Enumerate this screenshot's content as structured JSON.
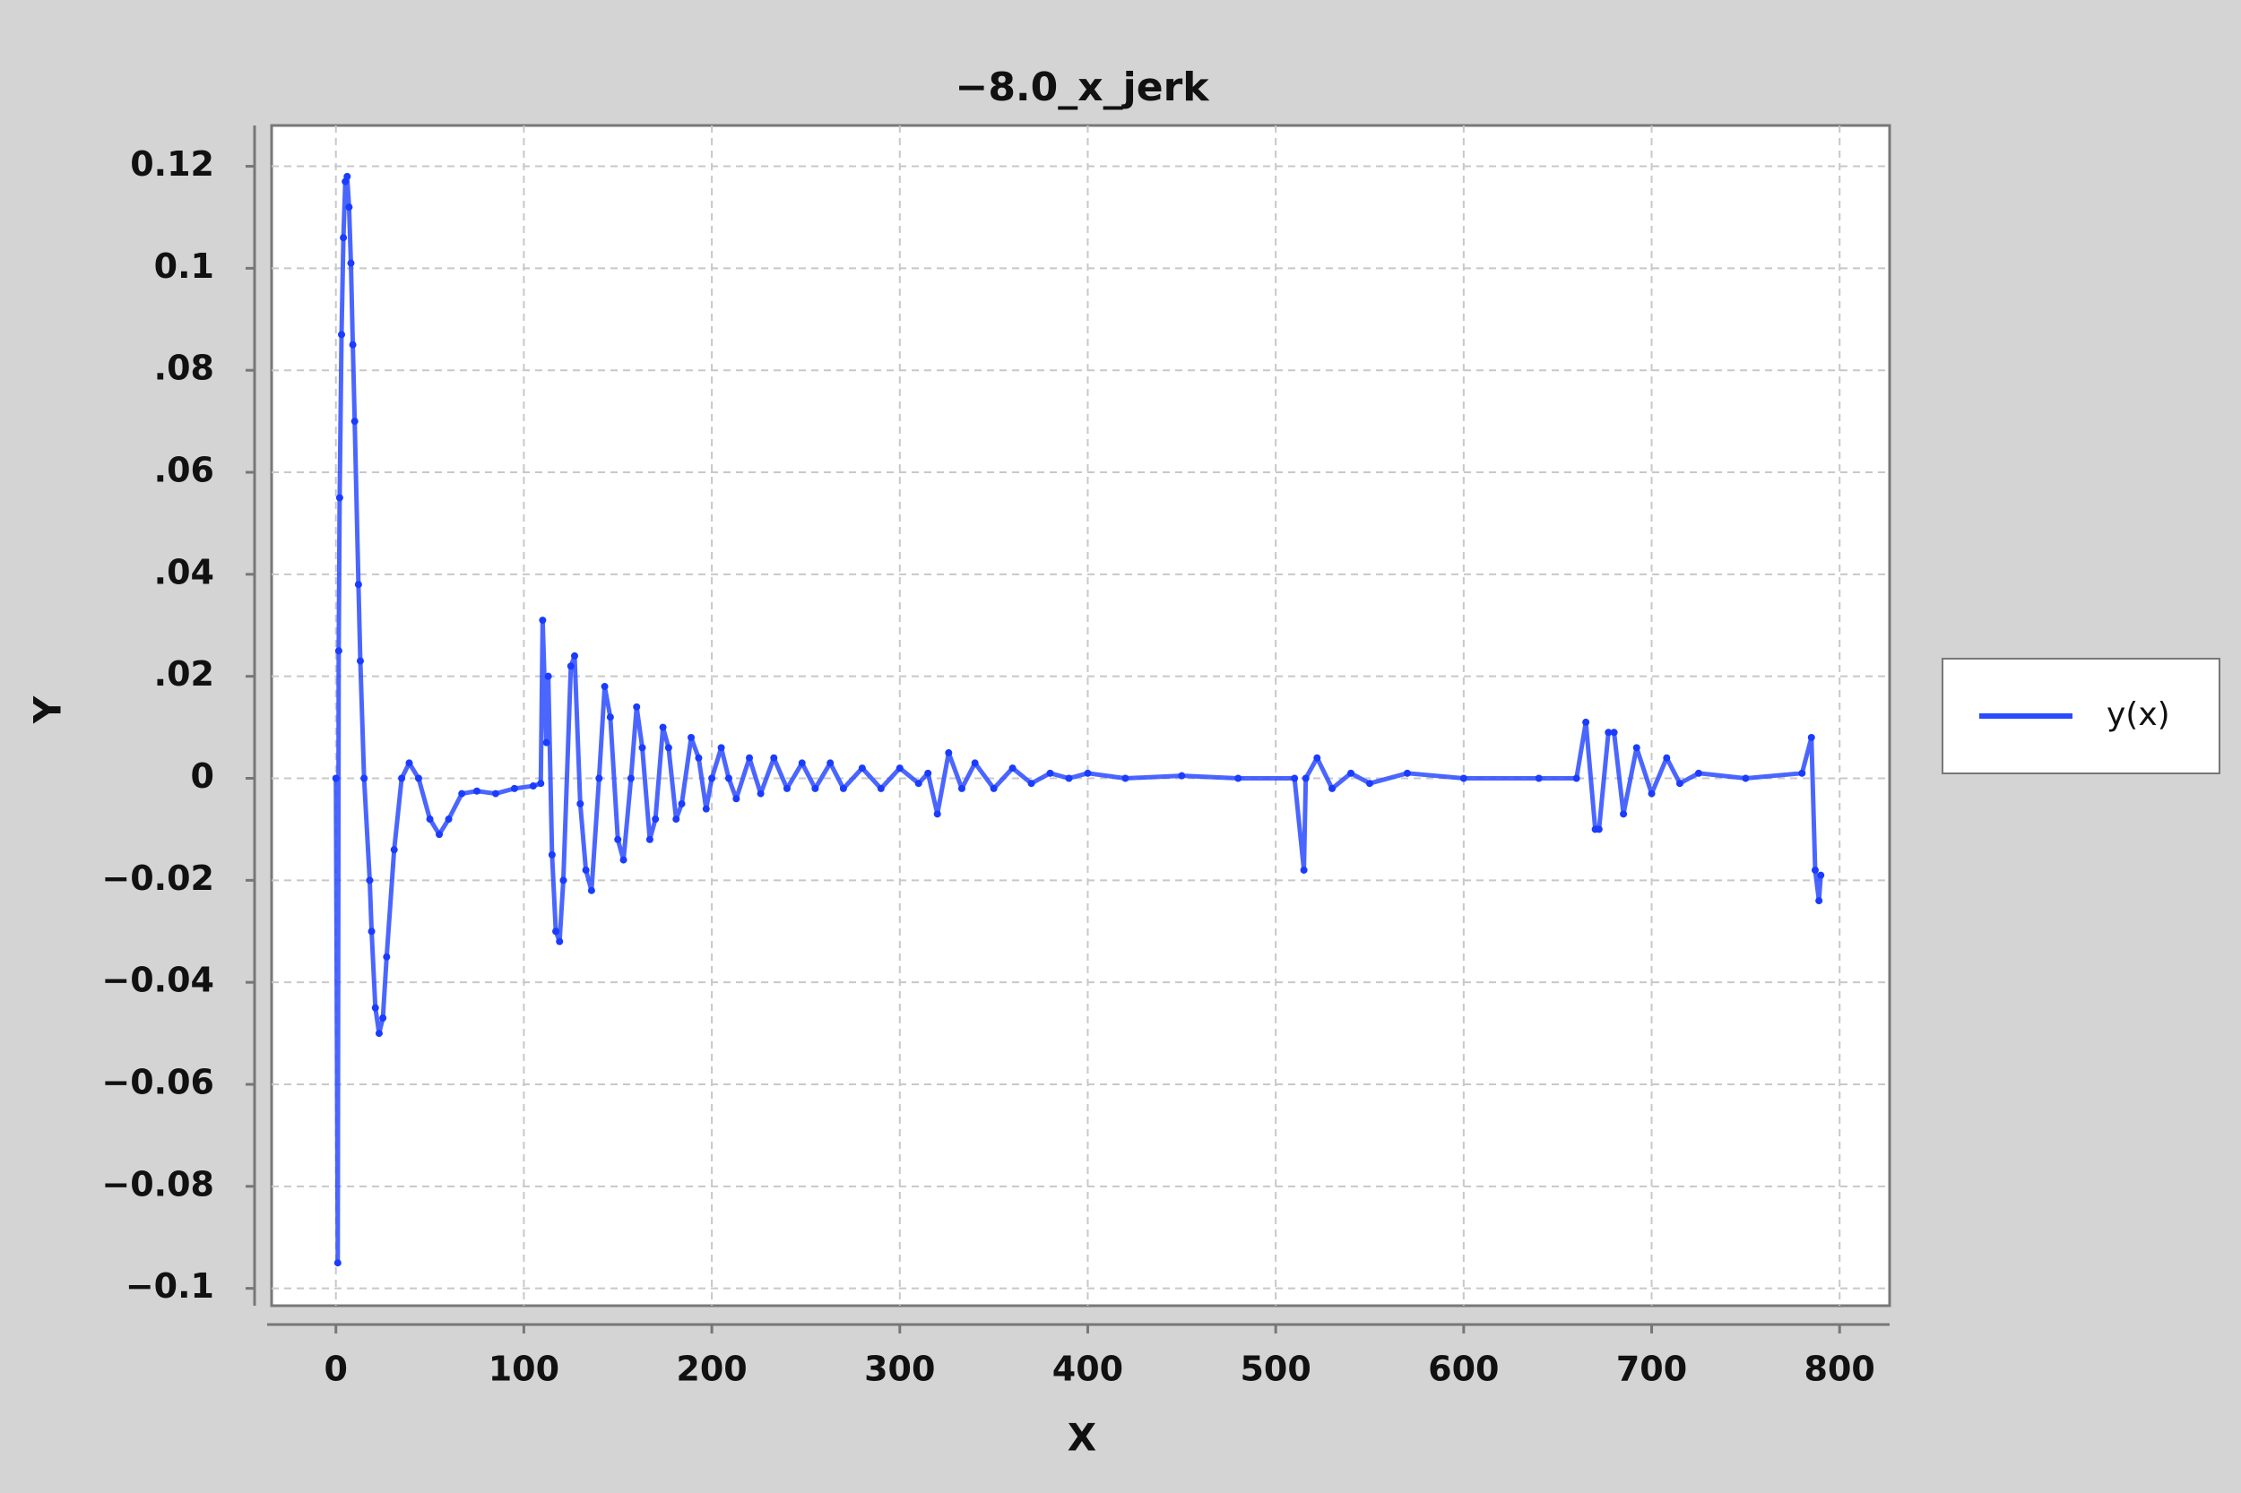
{
  "chart_data": {
    "type": "line",
    "title": "−8.0_x_jerk",
    "x_label": "X",
    "y_label": "Y",
    "xlim": [
      -34.2,
      826.6
    ],
    "ylim": [
      -0.1034,
      0.128
    ],
    "xticks": [
      0,
      100,
      200,
      300,
      400,
      500,
      600,
      700,
      800
    ],
    "yticks": [
      {
        "value": 0.12,
        "label": "0.12"
      },
      {
        "value": 0.1,
        "label": "0.1"
      },
      {
        "value": 0.08,
        "label": ".08"
      },
      {
        "value": 0.06,
        "label": ".06"
      },
      {
        "value": 0.04,
        "label": ".04"
      },
      {
        "value": 0.02,
        "label": ".02"
      },
      0,
      {
        "value": -0.02,
        "label": "−0.02"
      },
      {
        "value": -0.04,
        "label": "−0.04"
      },
      {
        "value": -0.06,
        "label": "−0.06"
      },
      {
        "value": -0.08,
        "label": "−0.08"
      },
      {
        "value": -0.1,
        "label": "−0.1"
      }
    ],
    "grid": true,
    "legend": "right",
    "x": [
      0,
      1,
      1.5,
      2,
      3,
      4,
      5,
      6,
      7,
      8,
      9,
      10,
      12,
      13,
      15,
      18,
      19,
      21,
      23,
      25,
      27,
      31,
      35,
      39,
      44,
      50,
      55,
      60,
      67,
      75,
      85,
      95,
      105,
      109,
      110,
      112,
      113,
      115,
      117,
      119,
      121,
      125,
      127,
      130,
      133,
      136,
      140,
      143,
      146,
      150,
      153,
      157,
      160,
      163,
      167,
      170,
      174,
      177,
      181,
      184,
      189,
      193,
      197,
      200,
      205,
      209,
      213,
      220,
      226,
      233,
      240,
      248,
      255,
      263,
      270,
      280,
      290,
      300,
      310,
      315,
      320,
      326,
      333,
      340,
      350,
      360,
      370,
      380,
      390,
      400,
      420,
      450,
      480,
      510,
      515,
      516,
      522,
      530,
      540,
      550,
      570,
      600,
      640,
      660,
      665,
      670,
      672,
      677,
      680,
      685,
      692,
      700,
      708,
      715,
      725,
      750,
      780,
      785,
      787,
      789,
      790
    ],
    "series": [
      {
        "name": "y(x)",
        "color": "#2b4bff",
        "values": [
          0,
          -0.095,
          0.025,
          0.055,
          0.087,
          0.106,
          0.117,
          0.118,
          0.112,
          0.101,
          0.085,
          0.07,
          0.038,
          0.023,
          0,
          -0.02,
          -0.03,
          -0.045,
          -0.05,
          -0.047,
          -0.035,
          -0.014,
          0,
          0.003,
          0,
          -0.008,
          -0.011,
          -0.008,
          -0.003,
          -0.0025,
          -0.003,
          -0.002,
          -0.0015,
          -0.001,
          0.031,
          0.007,
          0.02,
          -0.015,
          -0.03,
          -0.032,
          -0.02,
          0.022,
          0.024,
          -0.005,
          -0.018,
          -0.022,
          0,
          0.018,
          0.012,
          -0.012,
          -0.016,
          0,
          0.014,
          0.006,
          -0.012,
          -0.008,
          0.01,
          0.006,
          -0.008,
          -0.005,
          0.008,
          0.004,
          -0.006,
          0,
          0.006,
          0,
          -0.004,
          0.004,
          -0.003,
          0.004,
          -0.002,
          0.003,
          -0.002,
          0.003,
          -0.002,
          0.002,
          -0.002,
          0.002,
          -0.001,
          0.001,
          -0.007,
          0.005,
          -0.002,
          0.003,
          -0.002,
          0.002,
          -0.001,
          0.001,
          0,
          0.001,
          0,
          0.0005,
          0,
          0,
          -0.018,
          0,
          0.004,
          -0.002,
          0.001,
          -0.001,
          0.001,
          0,
          0,
          0,
          0.011,
          -0.01,
          -0.01,
          0.009,
          0.009,
          -0.007,
          0.006,
          -0.003,
          0.004,
          -0.001,
          0.001,
          0,
          0.001,
          0.008,
          -0.018,
          -0.024,
          -0.019
        ]
      }
    ]
  }
}
